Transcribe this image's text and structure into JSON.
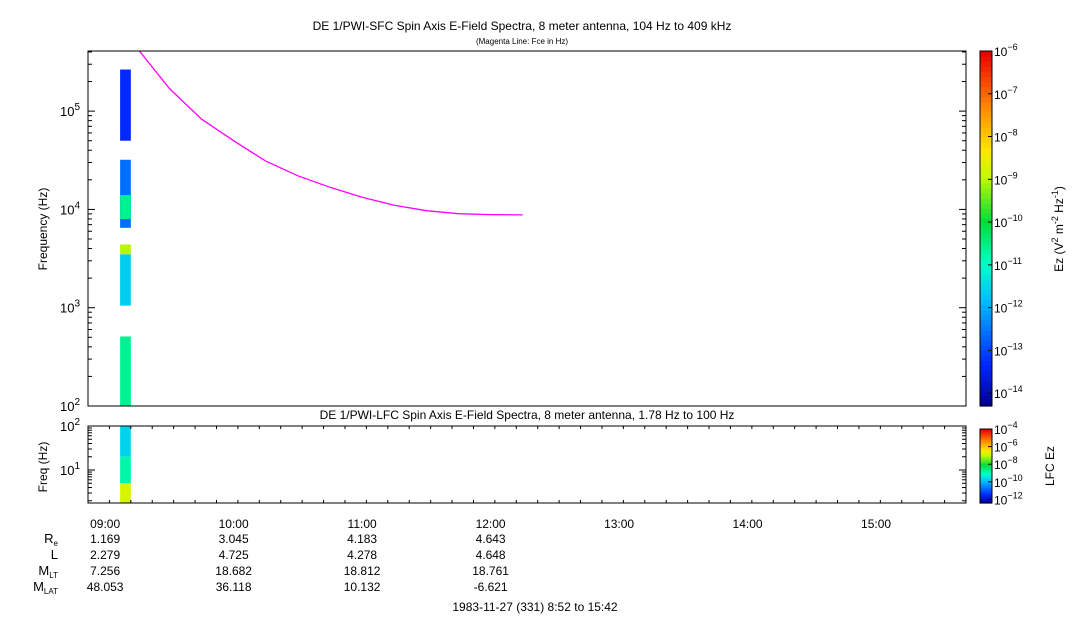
{
  "chart_data": [
    {
      "id": "sfc",
      "type": "heatmap",
      "title": "DE 1/PWI-SFC  Spin Axis E-Field Spectra, 8 meter antenna, 104 Hz to 409 kHz",
      "subtitle": "(Magenta Line: Fce in Hz)",
      "ylabel": "Frequency (Hz)",
      "ylim": [
        100,
        409000
      ],
      "yscale": "log",
      "y_tick_exponents": [
        2,
        3,
        4,
        5
      ],
      "xlim": [
        "08:52",
        "15:42"
      ],
      "colorbar": {
        "label": "Ez (V² m⁻² Hz⁻¹)",
        "label_parts": [
          "Ez (V",
          "2",
          " m",
          "-2",
          " Hz",
          "-1",
          ")"
        ],
        "scale": "log",
        "range_exponents": [
          -14.3,
          -6
        ],
        "tick_exponents": [
          -14,
          -13,
          -12,
          -11,
          -10,
          -9,
          -8,
          -7,
          -6
        ]
      },
      "spectral_blocks": [
        {
          "t0": "09:07",
          "t1": "09:12",
          "f_lo": 50000,
          "f_hi": 265000,
          "level_exp": -13.3
        },
        {
          "t0": "09:07",
          "t1": "09:12",
          "f_lo": 6500,
          "f_hi": 32000,
          "level_exp": -12.6
        },
        {
          "t0": "09:07",
          "t1": "09:12",
          "f_lo": 8000,
          "f_hi": 14000,
          "level_exp": -10.6
        },
        {
          "t0": "09:07",
          "t1": "09:12",
          "f_lo": 1050,
          "f_hi": 3500,
          "level_exp": -11.6
        },
        {
          "t0": "09:07",
          "t1": "09:12",
          "f_lo": 3500,
          "f_hi": 4400,
          "level_exp": -9.0
        },
        {
          "t0": "09:07",
          "t1": "09:12",
          "f_lo": 100,
          "f_hi": 510,
          "level_exp": -10.6
        }
      ],
      "series": [
        {
          "name": "Fce",
          "color": "#ff00ff",
          "x": [
            "09:16",
            "09:30",
            "09:45",
            "10:00",
            "10:15",
            "10:30",
            "10:45",
            "11:00",
            "11:15",
            "11:30",
            "11:45",
            "12:00",
            "12:15"
          ],
          "y": [
            420000,
            170000,
            83000,
            50000,
            31000,
            22000,
            16800,
            13300,
            11000,
            9700,
            9050,
            8850,
            8800
          ]
        }
      ]
    },
    {
      "id": "lfc",
      "type": "heatmap",
      "title": "DE 1/PWI-LFC  Spin Axis E-Field Spectra, 8 meter antenna, 1.78 Hz to 100 Hz",
      "ylabel": "Freq (Hz)",
      "ylim": [
        1.78,
        100
      ],
      "yscale": "log",
      "y_tick_exponents": [
        1,
        2
      ],
      "xlim": [
        "08:52",
        "15:42"
      ],
      "xticks": [
        "09:00",
        "10:00",
        "11:00",
        "12:00",
        "13:00",
        "14:00",
        "15:00"
      ],
      "colorbar": {
        "label": "LFC Ez",
        "scale": "log",
        "range_exponents": [
          -12.4,
          -4
        ],
        "tick_exponents": [
          -12,
          -10,
          -8,
          -6,
          -4
        ]
      },
      "spectral_blocks": [
        {
          "t0": "09:07",
          "t1": "09:12",
          "f_lo": 20,
          "f_hi": 100,
          "level_exp": -9.6
        },
        {
          "t0": "09:07",
          "t1": "09:12",
          "f_lo": 5,
          "f_hi": 20,
          "level_exp": -8.8
        },
        {
          "t0": "09:07",
          "t1": "09:12",
          "f_lo": 1.78,
          "f_hi": 5,
          "level_exp": -6.8
        }
      ]
    }
  ],
  "ephemeris": {
    "times": [
      "09:00",
      "10:00",
      "11:00",
      "12:00"
    ],
    "rows": [
      {
        "label": "R",
        "sub": "e",
        "values": [
          "1.169",
          "3.045",
          "4.183",
          "4.643"
        ]
      },
      {
        "label": "L",
        "sub": "",
        "values": [
          "2.279",
          "4.725",
          "4.278",
          "4.648"
        ]
      },
      {
        "label": "M",
        "sub": "LT",
        "values": [
          "7.256",
          "18.682",
          "18.812",
          "18.761"
        ]
      },
      {
        "label": "M",
        "sub": "LAT",
        "values": [
          "48.053",
          "36.118",
          "10.132",
          "-6.621"
        ]
      }
    ]
  },
  "date_range": "1983-11-27 (331) 8:52 to 15:42"
}
